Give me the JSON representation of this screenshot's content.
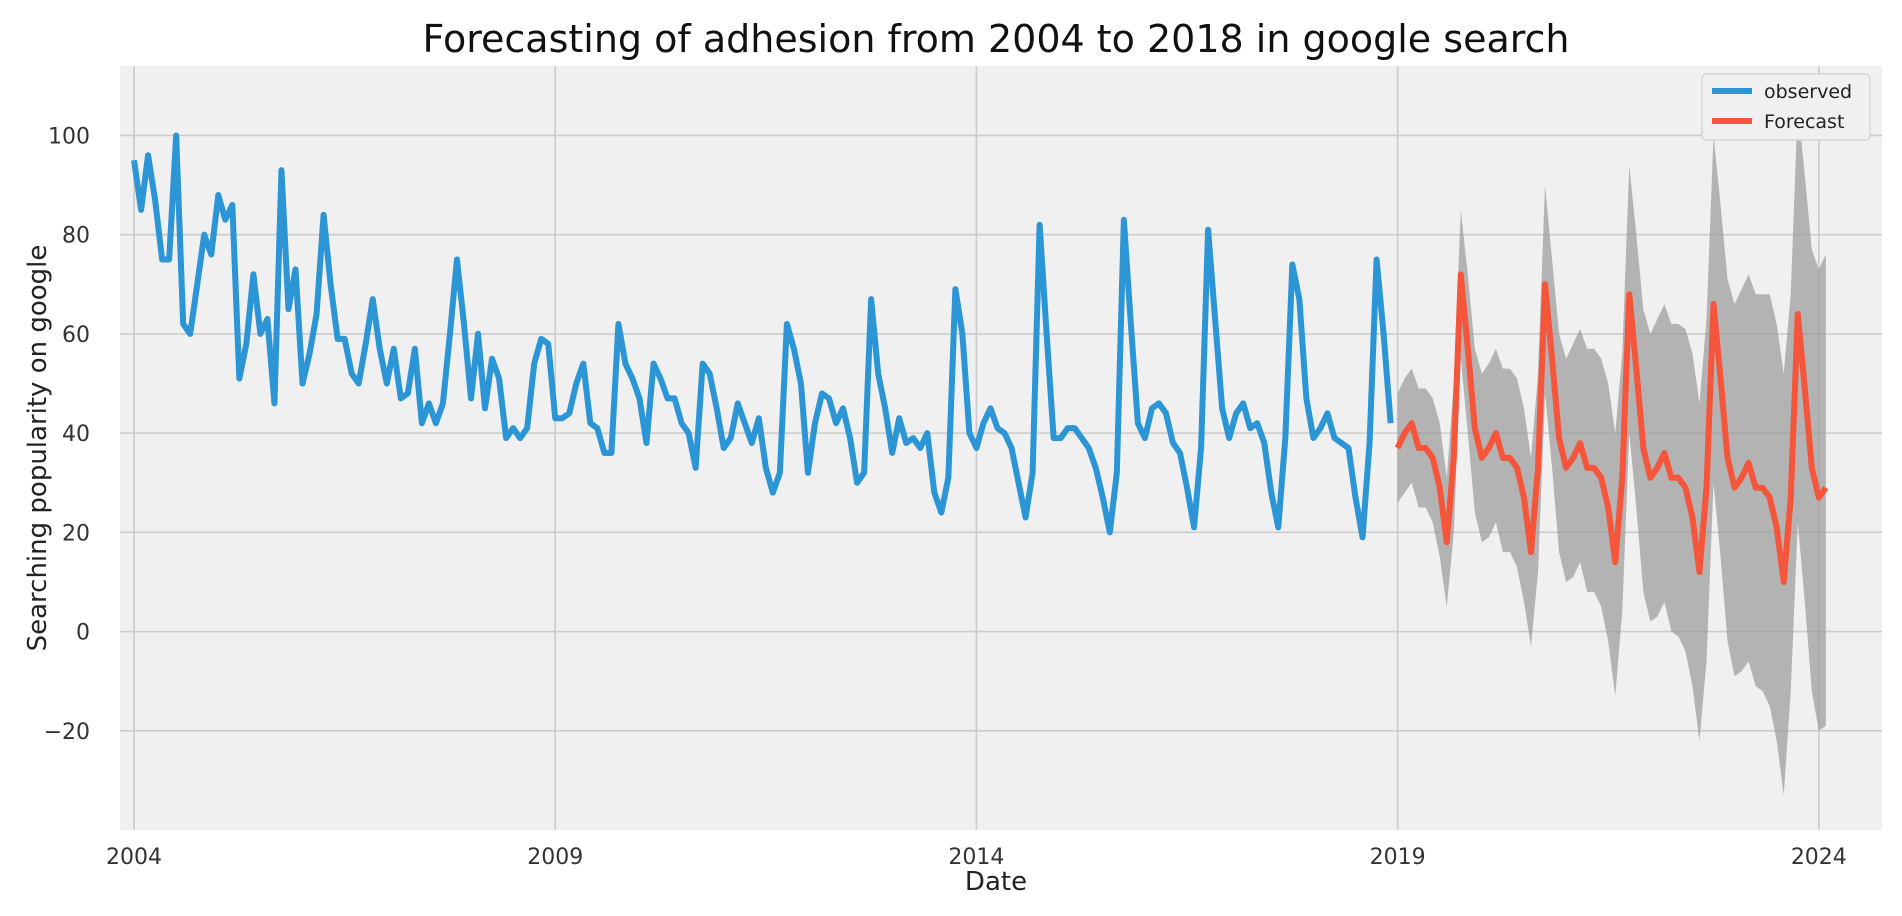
{
  "chart_data": {
    "type": "line",
    "title": "Forecasting of adhesion from 2004 to 2018 in google search",
    "xlabel": "Date",
    "ylabel": "Searching popularity on google",
    "xlim": [
      "2003-11",
      "2024-10"
    ],
    "ylim": [
      -40,
      114
    ],
    "x_ticks": [
      "2004",
      "2009",
      "2014",
      "2019",
      "2024"
    ],
    "y_ticks": [
      -20,
      0,
      20,
      40,
      60,
      80,
      100
    ],
    "y_tick_labels": [
      "−20",
      "0",
      "20",
      "40",
      "60",
      "80",
      "100"
    ],
    "grid": true,
    "legend_position": "top-right",
    "colors": {
      "observed": "#2b95d6",
      "forecast": "#f5553a",
      "confidence": "#999999",
      "plot_background": "#f0f0f0",
      "grid": "#cbcbcb"
    },
    "series": [
      {
        "name": "observed",
        "start": "2004-01",
        "freq": "monthly",
        "values": [
          95,
          85,
          96,
          87,
          75,
          75,
          100,
          62,
          60,
          70,
          80,
          76,
          88,
          83,
          86,
          51,
          58,
          72,
          60,
          63,
          46,
          93,
          65,
          73,
          50,
          56,
          64,
          84,
          70,
          59,
          59,
          52,
          50,
          58,
          67,
          57,
          50,
          57,
          47,
          48,
          57,
          42,
          46,
          42,
          46,
          60,
          75,
          62,
          47,
          60,
          45,
          55,
          51,
          39,
          41,
          39,
          41,
          54,
          59,
          58,
          43,
          43,
          44,
          50,
          54,
          42,
          41,
          36,
          36,
          62,
          54,
          51,
          47,
          38,
          54,
          51,
          47,
          47,
          42,
          40,
          33,
          54,
          52,
          45,
          37,
          39,
          46,
          42,
          38,
          43,
          33,
          28,
          32,
          62,
          57,
          50,
          32,
          42,
          48,
          47,
          42,
          45,
          39,
          30,
          32,
          67,
          52,
          45,
          36,
          43,
          38,
          39,
          37,
          40,
          28,
          24,
          31,
          69,
          60,
          40,
          37,
          42,
          45,
          41,
          40,
          37,
          30,
          23,
          32,
          82,
          60,
          39,
          39,
          41,
          41,
          39,
          37,
          33,
          27,
          20,
          32,
          83,
          62,
          42,
          39,
          45,
          46,
          44,
          38,
          36,
          29,
          21,
          37,
          81,
          63,
          45,
          39,
          44,
          46,
          41,
          42,
          38,
          28,
          21,
          39,
          74,
          67,
          47,
          39,
          41,
          44,
          39,
          38,
          37,
          27,
          19,
          38,
          75,
          60,
          42
        ]
      },
      {
        "name": "Forecast",
        "start": "2019-01",
        "freq": "monthly",
        "values": [
          37,
          40,
          42,
          37,
          37,
          35,
          29,
          18,
          35,
          72,
          57,
          41,
          35,
          37,
          40,
          35,
          35,
          33,
          27,
          16,
          33,
          70,
          55,
          39,
          33,
          35,
          38,
          33,
          33,
          31,
          25,
          14,
          31,
          68,
          53,
          37,
          31,
          33,
          36,
          31,
          31,
          29,
          23,
          12,
          29,
          66,
          51,
          35,
          29,
          31,
          34,
          29,
          29,
          27,
          21,
          10,
          27,
          64,
          49,
          33,
          27,
          29
        ],
        "lower": [
          26,
          28,
          30,
          25,
          25,
          22,
          15,
          5,
          20,
          55,
          40,
          24,
          18,
          19,
          22,
          16,
          16,
          13,
          6,
          -3,
          12,
          48,
          33,
          16,
          10,
          11,
          14,
          8,
          8,
          5,
          -2,
          -13,
          4,
          40,
          25,
          8,
          2,
          3,
          6,
          0,
          -1,
          -4,
          -11,
          -22,
          -6,
          30,
          15,
          -2,
          -9,
          -8,
          -6,
          -11,
          -12,
          -15,
          -22,
          -33,
          -12,
          22,
          6,
          -12,
          -20,
          -19
        ],
        "upper": [
          48,
          51,
          53,
          49,
          49,
          47,
          42,
          31,
          50,
          85,
          72,
          57,
          52,
          54,
          57,
          53,
          53,
          51,
          45,
          35,
          52,
          90,
          75,
          60,
          55,
          58,
          61,
          57,
          57,
          55,
          50,
          40,
          56,
          94,
          80,
          65,
          60,
          63,
          66,
          62,
          62,
          61,
          56,
          46,
          63,
          100,
          86,
          71,
          66,
          69,
          72,
          68,
          68,
          68,
          62,
          52,
          68,
          106,
          92,
          77,
          73,
          76
        ]
      }
    ]
  }
}
